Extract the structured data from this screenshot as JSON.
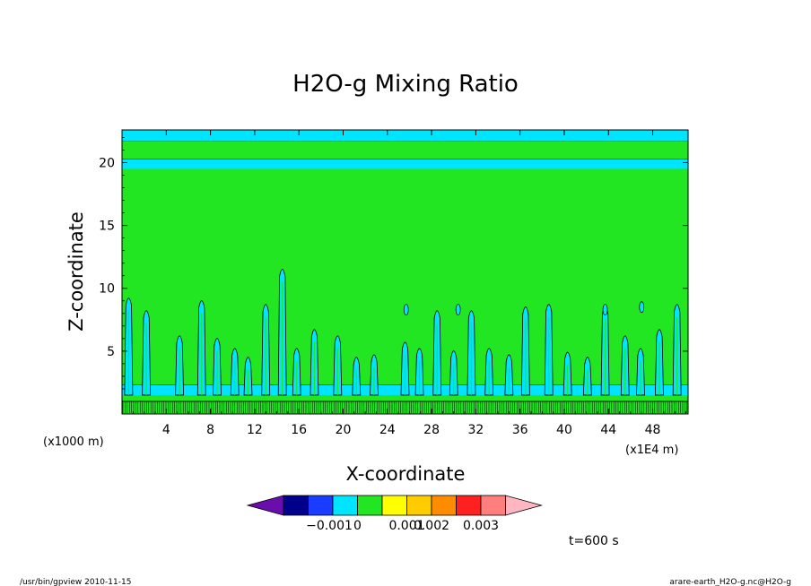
{
  "chart_data": {
    "type": "heatmap",
    "title": "H2O-g Mixing Ratio",
    "xlabel": "X-coordinate",
    "ylabel": "Z-coordinate",
    "x_unit": "(x1E4 m)",
    "y_unit": "(x1000 m)",
    "xlim": [
      0,
      51.2
    ],
    "ylim": [
      0,
      22.6
    ],
    "x_ticks": [
      4,
      8,
      12,
      16,
      20,
      24,
      28,
      32,
      36,
      40,
      44,
      48
    ],
    "y_ticks": [
      5,
      10,
      15,
      20
    ],
    "colorbar": {
      "levels": [
        -0.001,
        0,
        0.001,
        0.002,
        0.003
      ],
      "tick_labels": [
        "−0.001",
        "0",
        "0.001",
        "0.002",
        "0.003"
      ],
      "colors": [
        "#6a0dad",
        "#00008b",
        "#1a3cff",
        "#00e5ff",
        "#22e622",
        "#ffff00",
        "#ffcc00",
        "#ff8c00",
        "#ff2020",
        "#ff7f7f",
        "#ffb6c1"
      ]
    },
    "background_color": "#22e622",
    "layers": [
      {
        "z_range": [
          20.3,
          21.7
        ],
        "color": "#22e622"
      },
      {
        "z_range": [
          19.5,
          20.3
        ],
        "color": "#00e5ff"
      },
      {
        "z_range": [
          21.7,
          22.6
        ],
        "color": "#00e5ff"
      },
      {
        "z_range": [
          1.5,
          2.3
        ],
        "color": "#00e5ff"
      },
      {
        "z_range": [
          0.0,
          1.0
        ],
        "color": "#22e622"
      }
    ],
    "plumes": [
      {
        "x": 0.6,
        "top": 9.5
      },
      {
        "x": 2.2,
        "top": 8.5
      },
      {
        "x": 5.2,
        "top": 6.5
      },
      {
        "x": 7.2,
        "top": 9.3
      },
      {
        "x": 8.6,
        "top": 6.3
      },
      {
        "x": 10.2,
        "top": 5.5
      },
      {
        "x": 11.4,
        "top": 4.8
      },
      {
        "x": 13.0,
        "top": 9.0
      },
      {
        "x": 14.5,
        "top": 11.8
      },
      {
        "x": 15.8,
        "top": 5.5
      },
      {
        "x": 17.4,
        "top": 7.0
      },
      {
        "x": 19.5,
        "top": 6.5
      },
      {
        "x": 21.2,
        "top": 4.8
      },
      {
        "x": 22.8,
        "top": 5.0
      },
      {
        "x": 25.6,
        "top": 6.0
      },
      {
        "x": 26.9,
        "top": 5.5
      },
      {
        "x": 28.5,
        "top": 8.5
      },
      {
        "x": 30.0,
        "top": 5.3
      },
      {
        "x": 31.6,
        "top": 8.5
      },
      {
        "x": 33.2,
        "top": 5.5
      },
      {
        "x": 35.0,
        "top": 5.0
      },
      {
        "x": 36.5,
        "top": 8.8
      },
      {
        "x": 38.6,
        "top": 9.0
      },
      {
        "x": 40.3,
        "top": 5.2
      },
      {
        "x": 42.1,
        "top": 4.8
      },
      {
        "x": 43.7,
        "top": 8.8
      },
      {
        "x": 45.5,
        "top": 6.5
      },
      {
        "x": 46.9,
        "top": 5.5
      },
      {
        "x": 48.6,
        "top": 7.0
      },
      {
        "x": 50.2,
        "top": 9.0
      }
    ],
    "small_cells": [
      {
        "x": 25.7,
        "z": 8.3
      },
      {
        "x": 30.4,
        "z": 8.3
      },
      {
        "x": 43.7,
        "z": 8.3
      },
      {
        "x": 47.0,
        "z": 8.5
      }
    ]
  },
  "time_label": "t=600 s",
  "footer": {
    "left": "/usr/bin/gpview   2010-11-15",
    "right": "arare-earth_H2O-g.nc@H2O-g"
  }
}
